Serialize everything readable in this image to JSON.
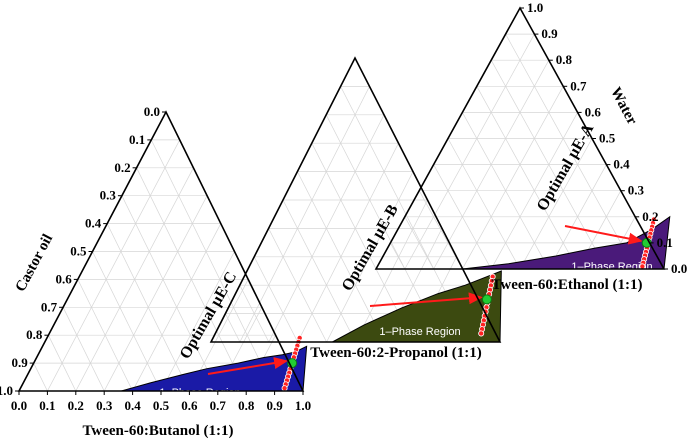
{
  "chart_data": [
    {
      "type": "ternary",
      "name": "Tween-60:Butanol system",
      "axis_bottom_label": "Tween-60:Butanol (1:1)",
      "axis_left_label": "Castor oil",
      "axis_right_label": "",
      "bottom_ticks": [
        "0.0",
        "0.1",
        "0.2",
        "0.3",
        "0.4",
        "0.5",
        "0.6",
        "0.7",
        "0.8",
        "0.9",
        "1.0"
      ],
      "left_ticks": [
        "0.0",
        "0.1",
        "0.2",
        "0.3",
        "0.4",
        "0.5",
        "0.6",
        "0.7",
        "0.8",
        "0.9",
        "1.0"
      ],
      "right_ticks": [],
      "region": {
        "label": "1–Phase Region",
        "color": "#1a1aa6",
        "boundary_smix": [
          0.36,
          0.45,
          0.55,
          0.62,
          0.72,
          0.8,
          0.86,
          0.9,
          0.93,
          1.0
        ],
        "boundary_third": [
          0.0,
          0.03,
          0.06,
          0.08,
          0.1,
          0.12,
          0.13,
          0.14,
          0.16,
          0.0
        ]
      },
      "dilution_line": {
        "color": "#ff2222",
        "start_smix": 0.89,
        "start_third": 0.19,
        "end_smix": 0.93,
        "end_third": 0.01,
        "points": 14
      },
      "optimal_point": {
        "label": "Optimal μE-C",
        "smix": 0.91,
        "third": 0.1,
        "color": "#22cc33"
      }
    },
    {
      "type": "ternary",
      "name": "Tween-60:2-Propanol system",
      "axis_bottom_label": "Tween-60:2-Propanol (1:1)",
      "axis_left_label": "",
      "axis_right_label": "",
      "bottom_ticks": [],
      "left_ticks": [],
      "right_ticks": [],
      "region": {
        "label": "1–Phase Region",
        "color": "#3c4a10",
        "boundary_smix": [
          0.42,
          0.5,
          0.6,
          0.7,
          0.78,
          0.84,
          0.88,
          1.0
        ],
        "boundary_third": [
          0.0,
          0.06,
          0.12,
          0.17,
          0.2,
          0.23,
          0.25,
          0.0
        ]
      },
      "dilution_line": {
        "color": "#ff2222",
        "start_smix": 0.86,
        "start_third": 0.23,
        "end_smix": 0.92,
        "end_third": 0.03,
        "points": 14
      },
      "optimal_point": {
        "label": "Optimal μE-B",
        "smix": 0.88,
        "third": 0.15,
        "color": "#22cc33"
      }
    },
    {
      "type": "ternary",
      "name": "Tween-60:Ethanol system",
      "axis_bottom_label": "Tween-60:Ethanol (1:1)",
      "axis_left_label": "",
      "axis_right_label": "Water",
      "bottom_ticks": [],
      "left_ticks": [],
      "right_ticks": [
        "0.0",
        "0.1",
        "0.2",
        "0.3",
        "0.4",
        "0.5",
        "0.6",
        "0.7",
        "0.8",
        "0.9",
        "1.0"
      ],
      "region": {
        "label": "1–Phase Region",
        "color": "#4a1a7a",
        "boundary_smix": [
          0.3,
          0.45,
          0.6,
          0.72,
          0.82,
          0.88,
          0.92,
          1.0
        ],
        "boundary_third": [
          0.0,
          0.02,
          0.05,
          0.08,
          0.1,
          0.15,
          0.2,
          0.0
        ]
      },
      "dilution_line": {
        "color": "#ff2222",
        "start_smix": 0.87,
        "start_third": 0.19,
        "end_smix": 0.92,
        "end_third": 0.01,
        "points": 14
      },
      "optimal_point": {
        "label": "Optimal μE-A",
        "smix": 0.89,
        "third": 0.1,
        "color": "#22cc33"
      }
    }
  ]
}
